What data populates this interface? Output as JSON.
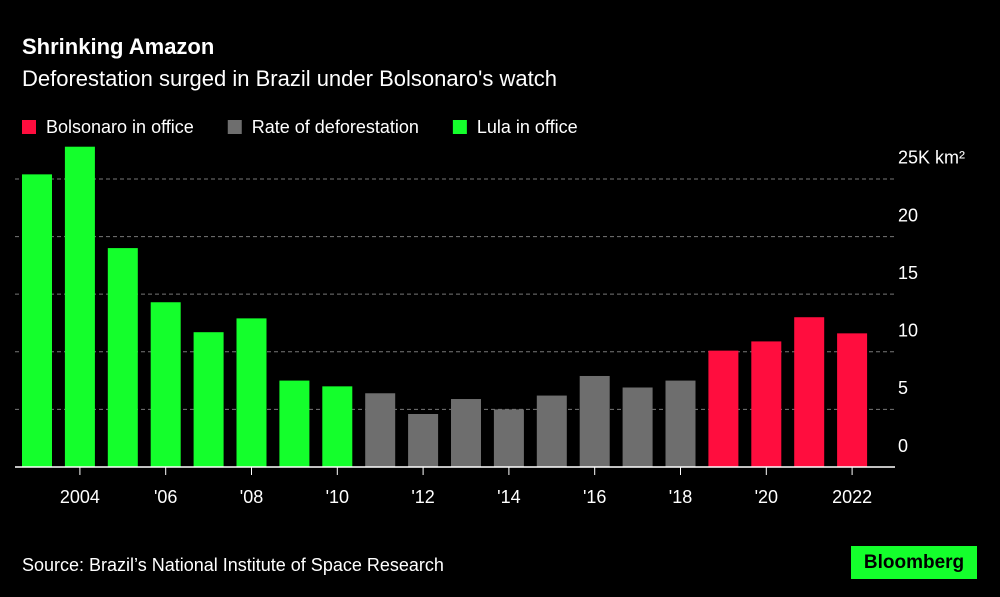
{
  "chart_data": {
    "type": "bar",
    "title": "Shrinking Amazon",
    "subtitle": "Deforestation surged in Brazil under Bolsonaro's watch",
    "source": "Source: Brazil’s National Institute of Space Research",
    "brand": "Bloomberg",
    "categories": [
      null,
      "2004",
      null,
      "'06",
      null,
      "'08",
      null,
      "'10",
      null,
      "'12",
      null,
      "'14",
      null,
      "'16",
      null,
      "'18",
      null,
      "'20",
      null,
      "2022"
    ],
    "series": [
      {
        "name": "Bolsonaro in office",
        "color": "#ff0d3e",
        "values": [
          null,
          null,
          null,
          null,
          null,
          null,
          null,
          null,
          null,
          null,
          null,
          null,
          null,
          null,
          null,
          null,
          10.1,
          10.9,
          13.0,
          11.6
        ]
      },
      {
        "name": "Rate of deforestation",
        "color": "#6e6e6e",
        "values": [
          null,
          null,
          null,
          null,
          null,
          null,
          null,
          null,
          6.4,
          4.6,
          5.9,
          5.0,
          6.2,
          7.9,
          6.9,
          7.5,
          null,
          null,
          null,
          null
        ]
      },
      {
        "name": "Lula in office",
        "color": "#14ff2c",
        "values": [
          25.4,
          27.8,
          19.0,
          14.3,
          11.7,
          12.9,
          7.5,
          7.0,
          null,
          null,
          null,
          null,
          null,
          null,
          null,
          null,
          null,
          null,
          null,
          null
        ]
      }
    ],
    "ylim": [
      0,
      28
    ],
    "yticks": [
      0,
      5,
      10,
      15,
      20,
      {
        "value": 25,
        "label": "25K km²"
      }
    ],
    "grid": true
  }
}
